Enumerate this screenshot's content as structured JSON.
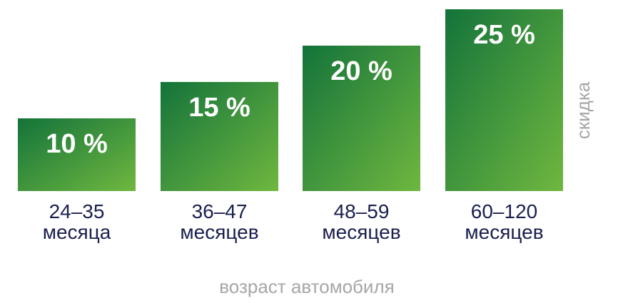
{
  "chart_data": {
    "type": "bar",
    "categories": [
      [
        "24–35",
        "месяца"
      ],
      [
        "36–47",
        "месяцев"
      ],
      [
        "48–59",
        "месяцев"
      ],
      [
        "60–120",
        "месяцев"
      ]
    ],
    "values": [
      10,
      15,
      20,
      25
    ],
    "value_labels": [
      "10 %",
      "15 %",
      "20 %",
      "25 %"
    ],
    "xlabel": "возраст автомобиля",
    "ylabel": "скидка",
    "grid": false,
    "colors": {
      "bar_top": "#13733a",
      "bar_bottom": "#6fb73f",
      "category_text": "#1a1f4e",
      "axis_label": "#a6a6a6"
    }
  }
}
